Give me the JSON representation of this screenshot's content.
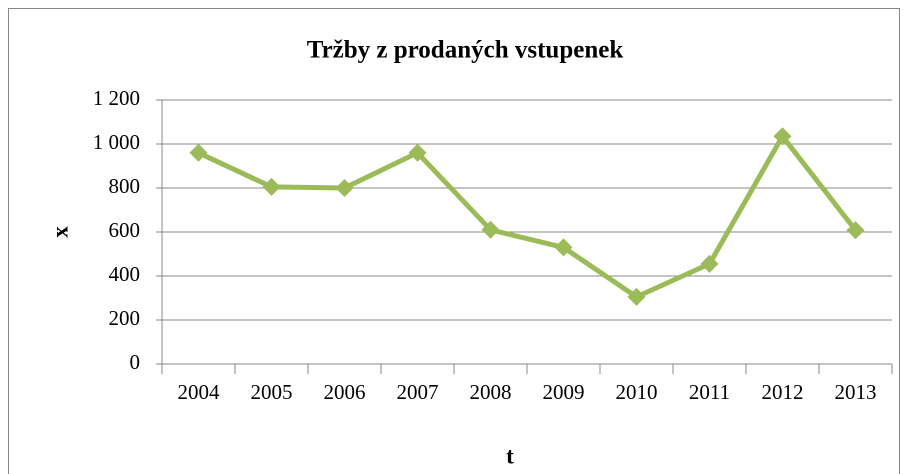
{
  "chart_data": {
    "type": "line",
    "title": "Tržby z prodaných vstupenek",
    "x_label": "t",
    "y_label": "x",
    "categories": [
      "2004",
      "2005",
      "2006",
      "2007",
      "2008",
      "2009",
      "2010",
      "2011",
      "2012",
      "2013"
    ],
    "values": [
      960,
      805,
      800,
      960,
      610,
      530,
      305,
      455,
      1035,
      608
    ],
    "color": "#9bbb59",
    "ylim": [
      0,
      1200
    ],
    "yticks": [
      0,
      200,
      400,
      600,
      800,
      {
        "value": 1000,
        "label": "1 000"
      },
      {
        "value": 1200,
        "label": "1 200"
      }
    ],
    "grid": true,
    "marker": "diamond"
  }
}
